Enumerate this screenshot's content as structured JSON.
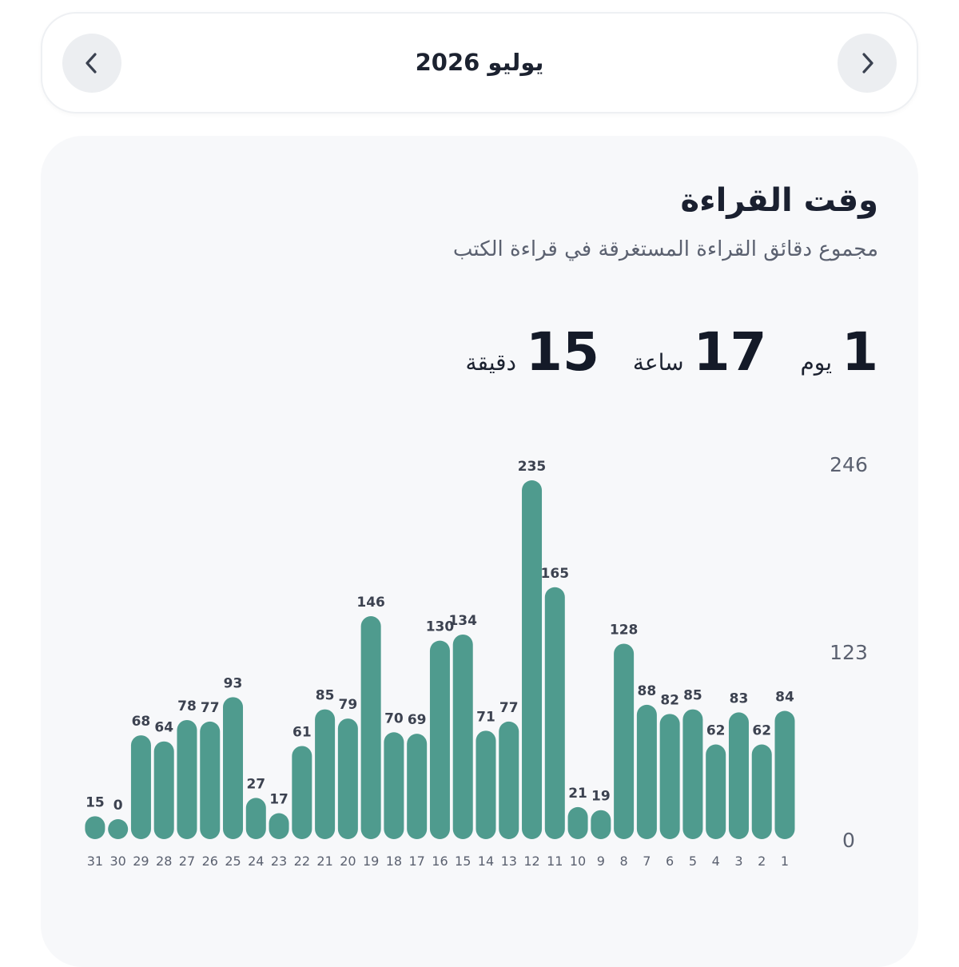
{
  "header": {
    "month_label": "يوليو 2026",
    "prev_icon": "chevron-left-icon",
    "next_icon": "chevron-right-icon"
  },
  "card": {
    "title": "وقت القراءة",
    "subtitle": "مجموع دقائق القراءة المستغرقة في قراءة الكتب",
    "total": {
      "days": "1",
      "days_unit": "يوم",
      "hours": "17",
      "hours_unit": "ساعة",
      "minutes": "15",
      "minutes_unit": "دقيقة"
    }
  },
  "colors": {
    "bar": "#4f9b8e",
    "label": "#3c4250",
    "axis": "#5b6170",
    "card_bg": "#f7f8fa",
    "button_bg": "#eceef1"
  },
  "chart_data": {
    "type": "bar",
    "orientation": "right-to-left",
    "categories": [
      "1",
      "2",
      "3",
      "4",
      "5",
      "6",
      "7",
      "8",
      "9",
      "10",
      "11",
      "12",
      "13",
      "14",
      "15",
      "16",
      "17",
      "18",
      "19",
      "20",
      "21",
      "22",
      "23",
      "24",
      "25",
      "26",
      "27",
      "28",
      "29",
      "30",
      "31"
    ],
    "values": [
      84,
      62,
      83,
      62,
      85,
      82,
      88,
      128,
      19,
      21,
      165,
      235,
      77,
      71,
      134,
      130,
      69,
      70,
      146,
      79,
      85,
      61,
      17,
      27,
      93,
      77,
      78,
      64,
      68,
      0,
      15
    ],
    "value_labels": [
      "84",
      "62",
      "83",
      "62",
      "85",
      "82",
      "88",
      "128",
      "19",
      "21",
      "165",
      "235",
      "77",
      "71",
      "134",
      "130",
      "69",
      "70",
      "146",
      "79",
      "85",
      "61",
      "17",
      "27",
      "93",
      "77",
      "78",
      "64",
      "68",
      "0",
      "15"
    ],
    "y_ticks": [
      "0",
      "123",
      "246"
    ],
    "y_tick_values": [
      0,
      123,
      246
    ],
    "ylim": [
      0,
      246
    ],
    "grid": false,
    "legend": "none"
  }
}
